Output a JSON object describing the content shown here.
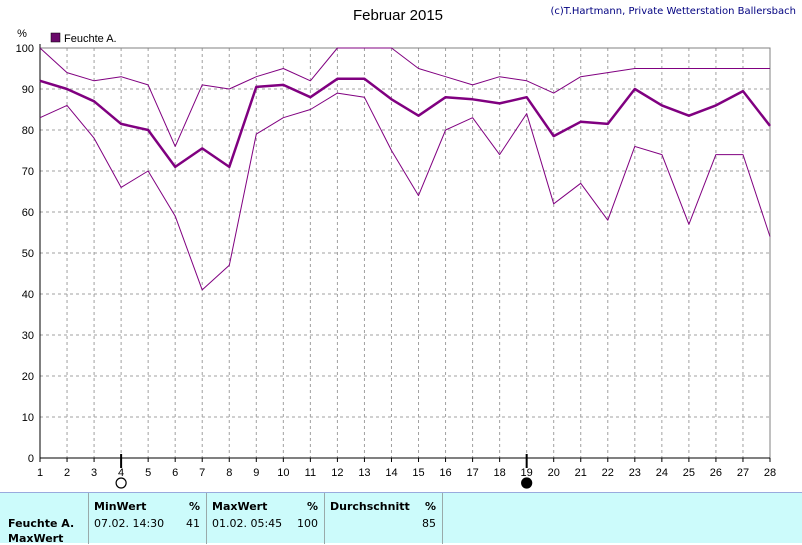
{
  "chart_data": {
    "type": "line",
    "title": "Februar 2015",
    "copyright": "(c)T.Hartmann, Private Wetterstation Ballersbach",
    "ylabel": "%",
    "ylim": [
      0,
      100
    ],
    "yticks": [
      "0",
      "10",
      "20",
      "30",
      "40",
      "50",
      "60",
      "70",
      "80",
      "90",
      "100"
    ],
    "x": [
      "1",
      "2",
      "3",
      "4",
      "5",
      "6",
      "7",
      "8",
      "9",
      "10",
      "11",
      "12",
      "13",
      "14",
      "15",
      "16",
      "17",
      "18",
      "19",
      "20",
      "21",
      "22",
      "23",
      "24",
      "25",
      "26",
      "27",
      "28"
    ],
    "legend": [
      {
        "label": "Feuchte A.",
        "color": "#6a0a6a"
      }
    ],
    "grid": true,
    "series": [
      {
        "role": "max",
        "color": "#800080",
        "width": 1,
        "values": [
          100,
          94,
          92,
          93,
          91,
          76,
          91,
          90,
          93,
          95,
          92,
          100,
          100,
          100,
          95,
          93,
          91,
          93,
          92,
          89,
          93,
          94,
          95,
          95,
          95,
          95,
          95,
          95
        ]
      },
      {
        "role": "avg",
        "color": "#800080",
        "width": 2.5,
        "values": [
          92,
          90,
          87,
          81.5,
          80,
          71,
          75.5,
          71,
          90.5,
          91,
          88,
          92.5,
          92.5,
          87.5,
          83.5,
          88,
          87.5,
          86.5,
          88,
          78.5,
          82,
          81.5,
          90,
          86,
          83.5,
          86,
          89.5,
          81
        ]
      },
      {
        "role": "min",
        "color": "#800080",
        "width": 1,
        "values": [
          83,
          86,
          78,
          66,
          70,
          59,
          41,
          47,
          79,
          83,
          85,
          89,
          88,
          75,
          64,
          80,
          83,
          74,
          84,
          62,
          67,
          58,
          76,
          74,
          57,
          74,
          74,
          54
        ]
      }
    ],
    "markers": [
      {
        "x": "4",
        "type": "min-marker",
        "filled": false
      },
      {
        "x": "19",
        "type": "max-marker",
        "filled": true
      }
    ]
  },
  "stats": {
    "sensor_label": "Feuchte A.",
    "row_label": "MaxWert",
    "min_header": "MinWert",
    "min_unit": "%",
    "min_time": "07.02.  14:30",
    "min_value": "41",
    "max_header": "MaxWert",
    "max_unit": "%",
    "max_time": "01.02.  05:45",
    "max_value": "100",
    "avg_header": "Durchschnitt",
    "avg_unit": "%",
    "avg_value": "85"
  }
}
